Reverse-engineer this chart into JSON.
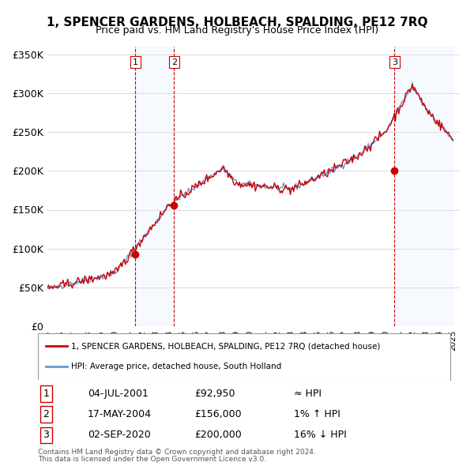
{
  "title": "1, SPENCER GARDENS, HOLBEACH, SPALDING, PE12 7RQ",
  "subtitle": "Price paid vs. HM Land Registry's House Price Index (HPI)",
  "ylabel_ticks": [
    "£0",
    "£50K",
    "£100K",
    "£150K",
    "£200K",
    "£250K",
    "£300K",
    "£350K"
  ],
  "ytick_values": [
    0,
    50000,
    100000,
    150000,
    200000,
    250000,
    300000,
    350000
  ],
  "ylim": [
    0,
    360000
  ],
  "xlim_start": 1995.0,
  "xlim_end": 2025.5,
  "sale_color": "#cc0000",
  "hpi_color": "#6699cc",
  "sale_marker_color": "#cc0000",
  "vline_color": "#cc0000",
  "highlight_fill": "#ddeeff",
  "sales": [
    {
      "date_num": 2001.5,
      "price": 92950,
      "label": "1"
    },
    {
      "date_num": 2004.37,
      "price": 156000,
      "label": "2"
    },
    {
      "date_num": 2020.67,
      "price": 200000,
      "label": "3"
    }
  ],
  "transactions": [
    {
      "num": "1",
      "date": "04-JUL-2001",
      "price": "£92,950",
      "hpi_rel": "≈ HPI"
    },
    {
      "num": "2",
      "date": "17-MAY-2004",
      "price": "£156,000",
      "hpi_rel": "1% ↑ HPI"
    },
    {
      "num": "3",
      "date": "02-SEP-2020",
      "price": "£200,000",
      "hpi_rel": "16% ↓ HPI"
    }
  ],
  "legend_line1": "1, SPENCER GARDENS, HOLBEACH, SPALDING, PE12 7RQ (detached house)",
  "legend_line2": "HPI: Average price, detached house, South Holland",
  "footnote1": "Contains HM Land Registry data © Crown copyright and database right 2024.",
  "footnote2": "This data is licensed under the Open Government Licence v3.0."
}
